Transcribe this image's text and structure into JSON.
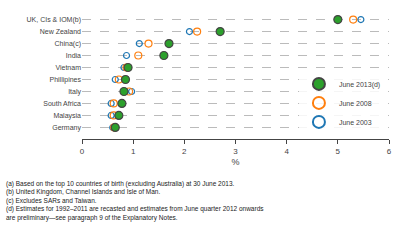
{
  "chart_data": {
    "type": "scatter",
    "orientation": "horizontal",
    "xlabel": "%",
    "categories": [
      "UK, CIs & IOM(b)",
      "New Zealand",
      "China(c)",
      "India",
      "Vietnam",
      "Phillipines",
      "Italy",
      "South Africa",
      "Malaysia",
      "Germany"
    ],
    "series": [
      {
        "name": "June 2013(d)",
        "marker": "circle",
        "values": [
          5.0,
          2.7,
          1.7,
          1.6,
          0.9,
          0.85,
          0.82,
          0.78,
          0.72,
          0.65
        ]
      },
      {
        "name": "June 2008",
        "marker": "circle-open",
        "values": [
          5.3,
          2.25,
          1.3,
          1.1,
          0.87,
          0.72,
          0.92,
          0.62,
          0.62,
          0.63
        ]
      },
      {
        "name": "June 2003",
        "marker": "circle-open",
        "values": [
          5.45,
          2.1,
          1.12,
          0.87,
          0.82,
          0.65,
          0.97,
          0.57,
          0.57,
          0.6
        ]
      }
    ],
    "xlim": [
      0,
      6
    ],
    "xticks": [
      0,
      1,
      2,
      3,
      4,
      5,
      6
    ],
    "grid": true,
    "legend": "lower right",
    "annotations": [
      "(a) Based on the top 10 countries of birth (excluding Australia) at 30 June 2013.",
      "(b) United Kingdom, Channel Islands and Isle of Man.",
      "(c) Excludes SARs and Taiwan.",
      "(d) Estimates for 1992–2011 are recasted and estimates from June quarter 2012 onwards",
      "are preliminary—see paragraph 9 of the Explanatory Notes."
    ]
  }
}
